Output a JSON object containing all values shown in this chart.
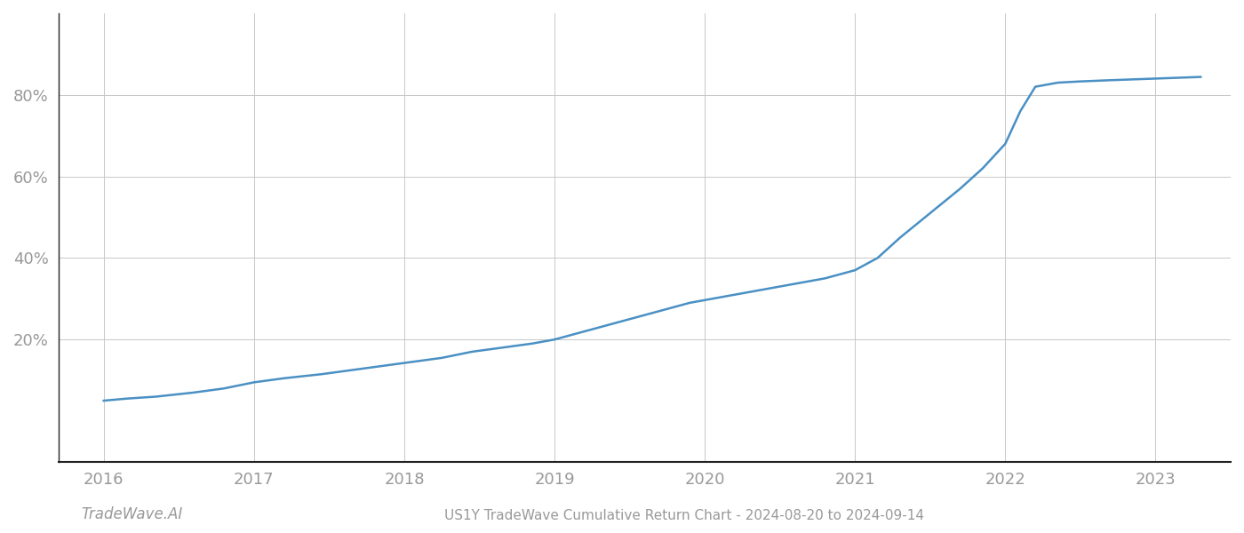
{
  "title": "US1Y TradeWave Cumulative Return Chart - 2024-08-20 to 2024-09-14",
  "watermark": "TradeWave.AI",
  "line_color": "#4a90c4",
  "background_color": "#ffffff",
  "grid_color": "#c8c8c8",
  "x_years": [
    2016.0,
    2016.15,
    2016.35,
    2016.6,
    2016.8,
    2017.0,
    2017.2,
    2017.45,
    2017.65,
    2017.85,
    2018.05,
    2018.25,
    2018.45,
    2018.65,
    2018.85,
    2019.0,
    2019.2,
    2019.4,
    2019.6,
    2019.75,
    2019.9,
    2020.05,
    2020.2,
    2020.35,
    2020.5,
    2020.65,
    2020.8,
    2021.0,
    2021.15,
    2021.3,
    2021.5,
    2021.7,
    2021.85,
    2022.0,
    2022.1,
    2022.2,
    2022.35,
    2022.5,
    2022.7,
    2022.85,
    2023.0,
    2023.15,
    2023.3
  ],
  "y_values": [
    5,
    5.5,
    6,
    7,
    8,
    9.5,
    10.5,
    11.5,
    12.5,
    13.5,
    14.5,
    15.5,
    17,
    18,
    19,
    20,
    22,
    24,
    26,
    27.5,
    29,
    30,
    31,
    32,
    33,
    34,
    35,
    37,
    40,
    45,
    51,
    57,
    62,
    68,
    76,
    82,
    83,
    83.3,
    83.6,
    83.8,
    84.0,
    84.2,
    84.4
  ],
  "xlim": [
    2015.7,
    2023.5
  ],
  "ylim": [
    -10,
    100
  ],
  "yticks": [
    20,
    40,
    60,
    80
  ],
  "xticks": [
    2016,
    2017,
    2018,
    2019,
    2020,
    2021,
    2022,
    2023
  ],
  "tick_label_color": "#999999",
  "axis_color": "#222222",
  "title_fontsize": 11,
  "tick_fontsize": 13,
  "watermark_fontsize": 12,
  "line_width": 1.8
}
